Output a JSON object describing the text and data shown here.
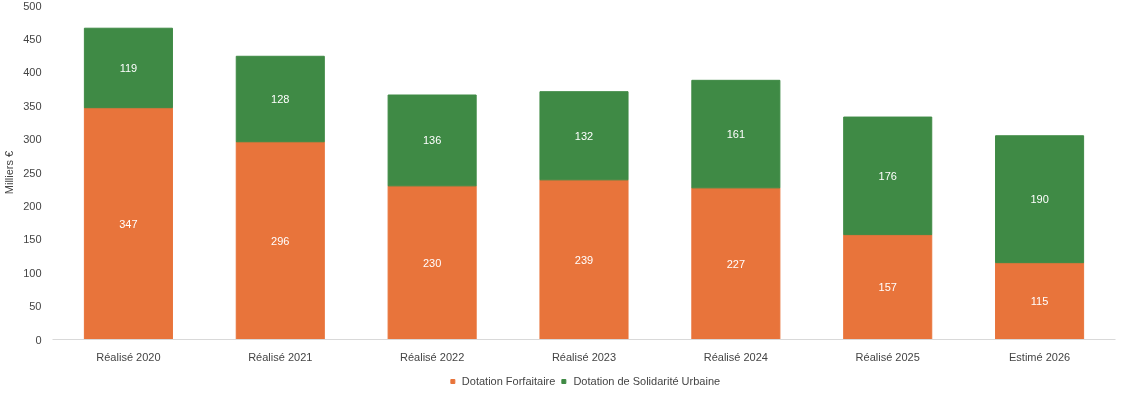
{
  "chart_data": {
    "type": "bar",
    "stacked": true,
    "ylabel": "Milliers €",
    "categories": [
      "Réalisé 2020",
      "Réalisé 2021",
      "Réalisé 2022",
      "Réalisé 2023",
      "Réalisé 2024",
      "Réalisé 2025",
      "Estimé 2026"
    ],
    "series": [
      {
        "name": "Dotation Forfaitaire",
        "color": "#e8743b",
        "values": [
          347,
          296,
          230,
          239,
          227,
          157,
          115
        ]
      },
      {
        "name": "Dotation de Solidarité Urbaine",
        "color": "#3f8a45",
        "values": [
          119,
          128,
          136,
          132,
          161,
          176,
          190
        ]
      }
    ],
    "ylim": [
      0,
      500
    ],
    "yticks": [
      0,
      50,
      100,
      150,
      200,
      250,
      300,
      350,
      400,
      450,
      500
    ],
    "data_labels": true,
    "legend": "bottom",
    "grid": false
  }
}
